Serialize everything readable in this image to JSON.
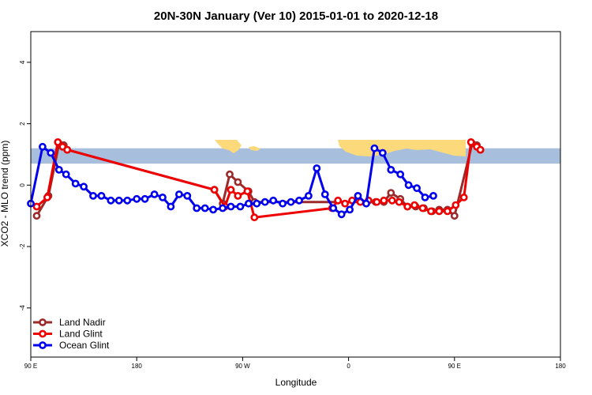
{
  "chart_data": {
    "type": "line",
    "title": "20N-30N January (Ver 10)   2015-01-01 to 2020-12-18",
    "xlabel": "Longitude",
    "ylabel": "XCO2 - MLO trend (ppm)",
    "xlim": [
      90,
      450
    ],
    "ylim": [
      -5.6,
      5.0
    ],
    "x_ticks": [
      {
        "value": 90,
        "label": "90 E"
      },
      {
        "value": 180,
        "label": "180"
      },
      {
        "value": 270,
        "label": "90 W"
      },
      {
        "value": 360,
        "label": "0"
      },
      {
        "value": 450,
        "label": "90 E"
      },
      {
        "value": 540,
        "label": "180"
      }
    ],
    "y_ticks": [
      {
        "value": -4,
        "label": "-4"
      },
      {
        "value": -2,
        "label": "-2"
      },
      {
        "value": 0,
        "label": "0"
      },
      {
        "value": 2,
        "label": "2"
      },
      {
        "value": 4,
        "label": "4"
      }
    ],
    "map_strip": {
      "y_min": 0.7,
      "y_max": 1.2,
      "ocean_color": "#a7bedd",
      "land_color": "#fcd97a"
    },
    "legend_position": "bottom-left",
    "series": [
      {
        "name": "Land Nadir",
        "color": "#9b2a2a",
        "points": [
          [
            95,
            -1.0
          ],
          [
            105,
            -0.35
          ],
          [
            114,
            1.35
          ],
          [
            118,
            1.3
          ],
          [
            121,
            1.15
          ],
          [
            246,
            -0.15
          ],
          [
            253,
            -0.6
          ],
          [
            259,
            0.35
          ],
          [
            266,
            0.1
          ],
          [
            275,
            -0.2
          ],
          [
            280,
            -0.55
          ],
          [
            383,
            -0.55
          ],
          [
            390,
            -0.55
          ],
          [
            396,
            -0.25
          ],
          [
            404,
            -0.45
          ],
          [
            410,
            -0.7
          ],
          [
            417,
            -0.7
          ],
          [
            424,
            -0.75
          ],
          [
            431,
            -0.85
          ],
          [
            437,
            -0.8
          ],
          [
            444,
            -0.8
          ],
          [
            450,
            -1.0
          ],
          [
            465,
            1.35
          ],
          [
            469,
            1.3
          ],
          [
            472,
            1.15
          ]
        ]
      },
      {
        "name": "Land Glint",
        "color": "#ee0000",
        "points": [
          [
            95,
            -0.7
          ],
          [
            104,
            -0.4
          ],
          [
            113,
            1.4
          ],
          [
            117,
            1.25
          ],
          [
            121,
            1.15
          ],
          [
            246,
            -0.15
          ],
          [
            255,
            -0.7
          ],
          [
            260,
            -0.15
          ],
          [
            266,
            -0.35
          ],
          [
            274,
            -0.2
          ],
          [
            280,
            -1.05
          ],
          [
            346,
            -0.75
          ],
          [
            351,
            -0.5
          ],
          [
            357,
            -0.6
          ],
          [
            363,
            -0.5
          ],
          [
            370,
            -0.55
          ],
          [
            377,
            -0.5
          ],
          [
            384,
            -0.55
          ],
          [
            390,
            -0.5
          ],
          [
            397,
            -0.5
          ],
          [
            403,
            -0.55
          ],
          [
            410,
            -0.7
          ],
          [
            416,
            -0.65
          ],
          [
            423,
            -0.75
          ],
          [
            430,
            -0.85
          ],
          [
            437,
            -0.85
          ],
          [
            444,
            -0.85
          ],
          [
            451,
            -0.65
          ],
          [
            458,
            -0.4
          ],
          [
            464,
            1.4
          ],
          [
            469,
            1.25
          ],
          [
            472,
            1.15
          ]
        ]
      },
      {
        "name": "Ocean Glint",
        "color": "#0000ee",
        "points": [
          [
            90,
            -0.6
          ],
          [
            100,
            1.25
          ],
          [
            107,
            1.05
          ],
          [
            114,
            0.5
          ],
          [
            120,
            0.35
          ],
          [
            128,
            0.05
          ],
          [
            135,
            -0.05
          ],
          [
            143,
            -0.35
          ],
          [
            150,
            -0.35
          ],
          [
            158,
            -0.5
          ],
          [
            165,
            -0.5
          ],
          [
            172,
            -0.5
          ],
          [
            180,
            -0.45
          ],
          [
            187,
            -0.45
          ],
          [
            195,
            -0.3
          ],
          [
            202,
            -0.4
          ],
          [
            209,
            -0.7
          ],
          [
            216,
            -0.3
          ],
          [
            223,
            -0.35
          ],
          [
            231,
            -0.75
          ],
          [
            238,
            -0.75
          ],
          [
            245,
            -0.8
          ],
          [
            253,
            -0.75
          ],
          [
            260,
            -0.7
          ],
          [
            268,
            -0.7
          ],
          [
            275,
            -0.6
          ],
          [
            282,
            -0.6
          ],
          [
            289,
            -0.55
          ],
          [
            296,
            -0.5
          ],
          [
            304,
            -0.6
          ],
          [
            311,
            -0.55
          ],
          [
            318,
            -0.5
          ],
          [
            326,
            -0.35
          ],
          [
            333,
            0.55
          ],
          [
            340,
            -0.3
          ],
          [
            347,
            -0.75
          ],
          [
            354,
            -0.95
          ],
          [
            361,
            -0.8
          ],
          [
            368,
            -0.35
          ],
          [
            375,
            -0.6
          ],
          [
            382,
            1.2
          ],
          [
            389,
            1.05
          ],
          [
            396,
            0.5
          ],
          [
            404,
            0.35
          ],
          [
            411,
            0.0
          ],
          [
            418,
            -0.1
          ],
          [
            425,
            -0.4
          ],
          [
            432,
            -0.35
          ]
        ]
      }
    ]
  }
}
